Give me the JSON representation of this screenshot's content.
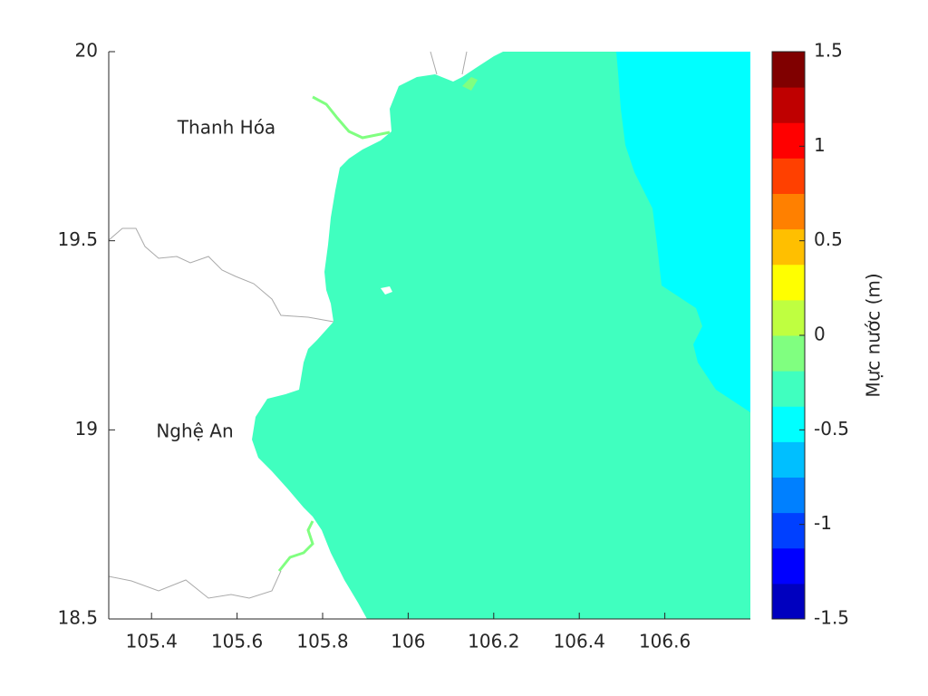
{
  "chart_data": {
    "type": "contour",
    "xlim": [
      105.3,
      106.8
    ],
    "xticks": [
      105.4,
      105.6,
      105.8,
      106,
      106.2,
      106.4,
      106.6
    ],
    "ylim": [
      18.5,
      20
    ],
    "yticks": [
      18.5,
      19,
      19.5,
      20
    ],
    "annotations": [
      "Thanh Hóa",
      "Nghệ An"
    ],
    "colorbar": {
      "label": "Mực nước (m)",
      "lim": [
        -1.5,
        1.5
      ],
      "ticks": [
        -1.5,
        -1,
        -0.5,
        0,
        0.5,
        1,
        1.5
      ],
      "colors": [
        "#0000bf",
        "#0000ff",
        "#0040ff",
        "#0080ff",
        "#00bfff",
        "#00ffff",
        "#40ffbf",
        "#80ff80",
        "#bfff40",
        "#ffff00",
        "#ffbf00",
        "#ff8000",
        "#ff4000",
        "#ff0000",
        "#bf0000",
        "#800000"
      ]
    }
  }
}
